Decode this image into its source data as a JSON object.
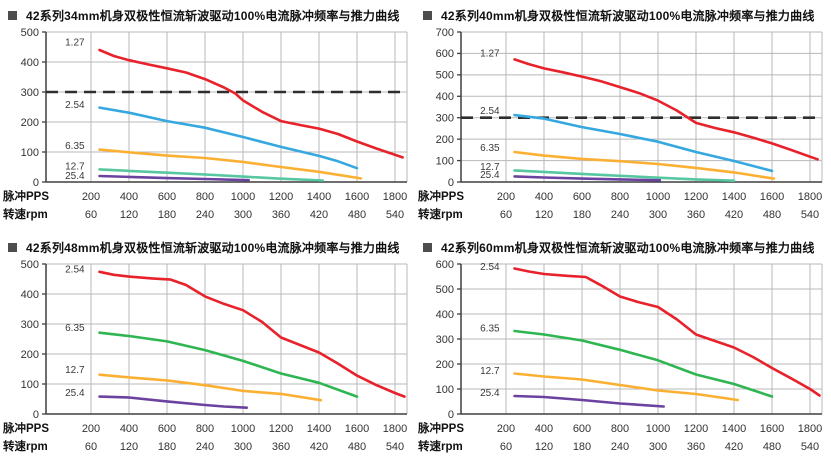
{
  "colors": {
    "red": "#e8222b",
    "blue": "#35a8e0",
    "amber": "#fbb034",
    "seafoam": "#56c7a0",
    "green": "#2fb551",
    "purple": "#6b42a0",
    "grid": "#b8b8b8",
    "axis": "#3f3f3f",
    "dashed_line": "#2e2e2e",
    "title_text": "#111111",
    "tick_text": "#333333"
  },
  "x_axis": {
    "pps_label": "脉冲PPS",
    "rpm_label": "转速rpm",
    "pps": [
      200,
      400,
      600,
      800,
      1000,
      1200,
      1400,
      1600,
      1800
    ],
    "rpm": [
      60,
      120,
      180,
      240,
      300,
      360,
      420,
      480,
      540
    ]
  },
  "chart_data": [
    {
      "type": "line",
      "title": "42系列34mm机身双极性恒流斩波驱动100%电流脉冲频率与推力曲线",
      "xlabel_row1": "脉冲PPS",
      "xlabel_row2": "转速rpm",
      "ylim": [
        0,
        500
      ],
      "yticks": [
        0,
        100,
        200,
        300,
        400,
        500
      ],
      "grid": true,
      "dashed_y": 300,
      "series": [
        {
          "label": "1.27",
          "color": "#e8222b",
          "label_pos": [
            115,
            465
          ],
          "points": [
            [
              245,
              440
            ],
            [
              320,
              420
            ],
            [
              400,
              406
            ],
            [
              500,
              392
            ],
            [
              600,
              379
            ],
            [
              700,
              365
            ],
            [
              800,
              343
            ],
            [
              900,
              315
            ],
            [
              960,
              295
            ],
            [
              1000,
              272
            ],
            [
              1100,
              234
            ],
            [
              1200,
              203
            ],
            [
              1300,
              190
            ],
            [
              1400,
              178
            ],
            [
              1500,
              160
            ],
            [
              1600,
              135
            ],
            [
              1700,
              112
            ],
            [
              1780,
              95
            ],
            [
              1840,
              82
            ]
          ]
        },
        {
          "label": "2.54",
          "color": "#35a8e0",
          "label_pos": [
            115,
            258
          ],
          "points": [
            [
              245,
              248
            ],
            [
              400,
              231
            ],
            [
              600,
              203
            ],
            [
              800,
              181
            ],
            [
              1000,
              150
            ],
            [
              1200,
              117
            ],
            [
              1400,
              87
            ],
            [
              1500,
              69
            ],
            [
              1600,
              46
            ]
          ]
        },
        {
          "label": "6.35",
          "color": "#fbb034",
          "label_pos": [
            115,
            120
          ],
          "points": [
            [
              245,
              108
            ],
            [
              400,
              99
            ],
            [
              600,
              88
            ],
            [
              800,
              80
            ],
            [
              1000,
              67
            ],
            [
              1200,
              50
            ],
            [
              1400,
              34
            ],
            [
              1620,
              12
            ]
          ]
        },
        {
          "label": "12.7",
          "color": "#56c7a0",
          "label_pos": [
            115,
            52
          ],
          "points": [
            [
              245,
              42
            ],
            [
              400,
              37
            ],
            [
              600,
              31
            ],
            [
              800,
              25
            ],
            [
              1000,
              18
            ],
            [
              1200,
              11
            ],
            [
              1420,
              5
            ]
          ]
        },
        {
          "label": "25.4",
          "color": "#6b42a0",
          "label_pos": [
            115,
            21
          ],
          "points": [
            [
              245,
              20
            ],
            [
              400,
              17
            ],
            [
              600,
              13
            ],
            [
              800,
              10
            ],
            [
              1030,
              6
            ]
          ]
        }
      ]
    },
    {
      "type": "line",
      "title": "42系列40mm机身双极性恒流斩波驱动100%电流脉冲频率与推力曲线",
      "xlabel_row1": "脉冲PPS",
      "xlabel_row2": "转速rpm",
      "ylim": [
        0,
        700
      ],
      "yticks": [
        0,
        100,
        200,
        300,
        400,
        500,
        600,
        700
      ],
      "grid": true,
      "dashed_y": 300,
      "series": [
        {
          "label": "1.27",
          "color": "#e8222b",
          "label_pos": [
            115,
            600
          ],
          "points": [
            [
              245,
              572
            ],
            [
              320,
              550
            ],
            [
              400,
              530
            ],
            [
              500,
              512
            ],
            [
              600,
              492
            ],
            [
              700,
              470
            ],
            [
              800,
              443
            ],
            [
              900,
              415
            ],
            [
              1000,
              380
            ],
            [
              1100,
              333
            ],
            [
              1200,
              276
            ],
            [
              1300,
              252
            ],
            [
              1400,
              232
            ],
            [
              1500,
              207
            ],
            [
              1600,
              180
            ],
            [
              1700,
              150
            ],
            [
              1800,
              118
            ],
            [
              1840,
              106
            ]
          ]
        },
        {
          "label": "2.54",
          "color": "#35a8e0",
          "label_pos": [
            115,
            332
          ],
          "points": [
            [
              245,
              312
            ],
            [
              400,
              296
            ],
            [
              500,
              276
            ],
            [
              600,
              256
            ],
            [
              800,
              224
            ],
            [
              1000,
              188
            ],
            [
              1200,
              140
            ],
            [
              1400,
              98
            ],
            [
              1600,
              52
            ]
          ]
        },
        {
          "label": "6.35",
          "color": "#fbb034",
          "label_pos": [
            115,
            160
          ],
          "points": [
            [
              245,
              140
            ],
            [
              400,
              123
            ],
            [
              600,
              108
            ],
            [
              800,
              97
            ],
            [
              1000,
              84
            ],
            [
              1200,
              66
            ],
            [
              1400,
              45
            ],
            [
              1610,
              16
            ]
          ]
        },
        {
          "label": "12.7",
          "color": "#56c7a0",
          "label_pos": [
            115,
            70
          ],
          "points": [
            [
              245,
              54
            ],
            [
              400,
              47
            ],
            [
              600,
              38
            ],
            [
              800,
              29
            ],
            [
              1000,
              20
            ],
            [
              1200,
              12
            ],
            [
              1400,
              6
            ]
          ]
        },
        {
          "label": "25.4",
          "color": "#6b42a0",
          "label_pos": [
            115,
            34
          ],
          "points": [
            [
              245,
              26
            ],
            [
              400,
              21
            ],
            [
              600,
              16
            ],
            [
              800,
              12
            ],
            [
              1010,
              8
            ]
          ]
        }
      ]
    },
    {
      "type": "line",
      "title": "42系列48mm机身双极性恒流斩波驱动100%电流脉冲频率与推力曲线",
      "xlabel_row1": "脉冲PPS",
      "xlabel_row2": "转速rpm",
      "ylim": [
        0,
        500
      ],
      "yticks": [
        0,
        100,
        200,
        300,
        400,
        500
      ],
      "grid": true,
      "dashed_y": null,
      "series": [
        {
          "label": "2.54",
          "color": "#e8222b",
          "label_pos": [
            115,
            482
          ],
          "points": [
            [
              245,
              474
            ],
            [
              320,
              464
            ],
            [
              400,
              458
            ],
            [
              520,
              452
            ],
            [
              620,
              448
            ],
            [
              700,
              430
            ],
            [
              800,
              392
            ],
            [
              900,
              367
            ],
            [
              1000,
              346
            ],
            [
              1100,
              307
            ],
            [
              1200,
              255
            ],
            [
              1300,
              230
            ],
            [
              1400,
              205
            ],
            [
              1500,
              168
            ],
            [
              1600,
              128
            ],
            [
              1700,
              97
            ],
            [
              1800,
              70
            ],
            [
              1850,
              58
            ]
          ]
        },
        {
          "label": "6.35",
          "color": "#2fb551",
          "label_pos": [
            115,
            287
          ],
          "points": [
            [
              245,
              271
            ],
            [
              400,
              260
            ],
            [
              600,
              242
            ],
            [
              800,
              213
            ],
            [
              1000,
              177
            ],
            [
              1200,
              135
            ],
            [
              1400,
              104
            ],
            [
              1600,
              58
            ]
          ]
        },
        {
          "label": "12.7",
          "color": "#fbb034",
          "label_pos": [
            115,
            147
          ],
          "points": [
            [
              245,
              131
            ],
            [
              400,
              122
            ],
            [
              600,
              112
            ],
            [
              800,
              96
            ],
            [
              1000,
              77
            ],
            [
              1200,
              67
            ],
            [
              1410,
              46
            ]
          ]
        },
        {
          "label": "25.4",
          "color": "#6b42a0",
          "label_pos": [
            115,
            70
          ],
          "points": [
            [
              245,
              58
            ],
            [
              400,
              55
            ],
            [
              600,
              42
            ],
            [
              800,
              30
            ],
            [
              900,
              25
            ],
            [
              1020,
              21
            ]
          ]
        }
      ]
    },
    {
      "type": "line",
      "title": "42系列60mm机身双极性恒流斩波驱动100%电流脉冲频率与推力曲线",
      "xlabel_row1": "脉冲PPS",
      "xlabel_row2": "转速rpm",
      "ylim": [
        0,
        600
      ],
      "yticks": [
        0,
        100,
        200,
        300,
        400,
        500,
        600
      ],
      "grid": true,
      "dashed_y": null,
      "series": [
        {
          "label": "2.54",
          "color": "#e8222b",
          "label_pos": [
            115,
            588
          ],
          "points": [
            [
              245,
              582
            ],
            [
              320,
              570
            ],
            [
              400,
              560
            ],
            [
              520,
              553
            ],
            [
              620,
              548
            ],
            [
              700,
              515
            ],
            [
              800,
              470
            ],
            [
              900,
              447
            ],
            [
              1000,
              428
            ],
            [
              1100,
              378
            ],
            [
              1200,
              318
            ],
            [
              1300,
              292
            ],
            [
              1400,
              266
            ],
            [
              1500,
              228
            ],
            [
              1600,
              184
            ],
            [
              1700,
              143
            ],
            [
              1800,
              100
            ],
            [
              1850,
              74
            ]
          ]
        },
        {
          "label": "6.35",
          "color": "#2fb551",
          "label_pos": [
            115,
            342
          ],
          "points": [
            [
              245,
              332
            ],
            [
              400,
              318
            ],
            [
              600,
              294
            ],
            [
              800,
              257
            ],
            [
              1000,
              215
            ],
            [
              1200,
              158
            ],
            [
              1400,
              120
            ],
            [
              1600,
              70
            ]
          ]
        },
        {
          "label": "12.7",
          "color": "#fbb034",
          "label_pos": [
            115,
            172
          ],
          "points": [
            [
              245,
              162
            ],
            [
              400,
              150
            ],
            [
              600,
              138
            ],
            [
              800,
              116
            ],
            [
              1000,
              94
            ],
            [
              1200,
              80
            ],
            [
              1420,
              56
            ]
          ]
        },
        {
          "label": "25.4",
          "color": "#6b42a0",
          "label_pos": [
            115,
            84
          ],
          "points": [
            [
              245,
              72
            ],
            [
              400,
              68
            ],
            [
              600,
              56
            ],
            [
              800,
              42
            ],
            [
              1030,
              30
            ]
          ]
        }
      ]
    }
  ]
}
